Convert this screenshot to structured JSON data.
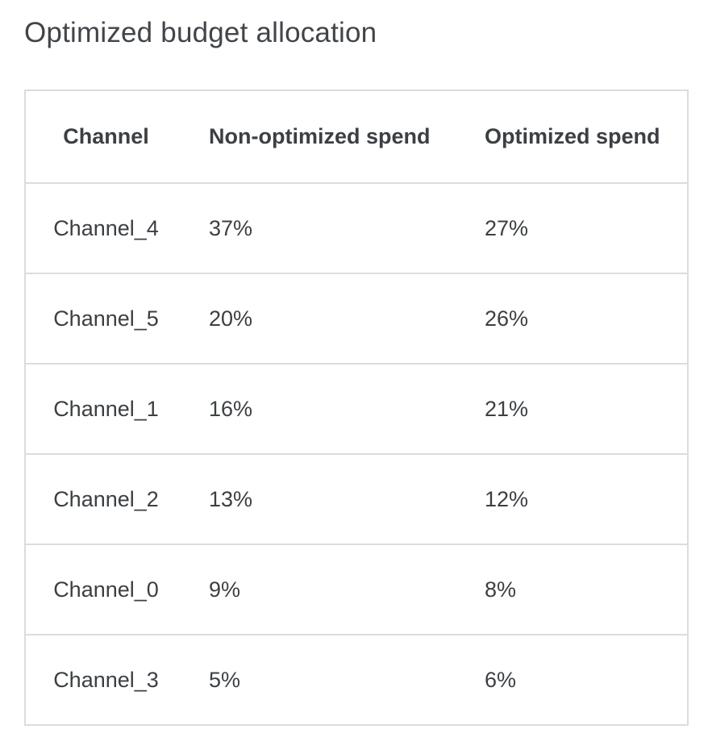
{
  "title": "Optimized budget allocation",
  "table": {
    "columns": [
      "Channel",
      "Non-optimized spend",
      "Optimized spend"
    ],
    "rows": [
      {
        "channel": "Channel_4",
        "non_optimized": "37%",
        "optimized": "27%"
      },
      {
        "channel": "Channel_5",
        "non_optimized": "20%",
        "optimized": "26%"
      },
      {
        "channel": "Channel_1",
        "non_optimized": "16%",
        "optimized": "21%"
      },
      {
        "channel": "Channel_2",
        "non_optimized": "13%",
        "optimized": "12%"
      },
      {
        "channel": "Channel_0",
        "non_optimized": "9%",
        "optimized": "8%"
      },
      {
        "channel": "Channel_3",
        "non_optimized": "5%",
        "optimized": "6%"
      }
    ]
  },
  "chart_data": {
    "type": "table",
    "title": "Optimized budget allocation",
    "columns": [
      "Channel",
      "Non-optimized spend",
      "Optimized spend"
    ],
    "rows": [
      [
        "Channel_4",
        "37%",
        "27%"
      ],
      [
        "Channel_5",
        "20%",
        "26%"
      ],
      [
        "Channel_1",
        "16%",
        "21%"
      ],
      [
        "Channel_2",
        "13%",
        "12%"
      ],
      [
        "Channel_0",
        "9%",
        "8%"
      ],
      [
        "Channel_3",
        "5%",
        "6%"
      ]
    ],
    "non_optimized_values_pct": [
      37,
      20,
      16,
      13,
      9,
      5
    ],
    "optimized_values_pct": [
      27,
      26,
      21,
      12,
      8,
      6
    ]
  },
  "colors": {
    "title_text": "#414549",
    "table_text": "#3c4043",
    "border": "#dadce0",
    "background": "#ffffff"
  }
}
